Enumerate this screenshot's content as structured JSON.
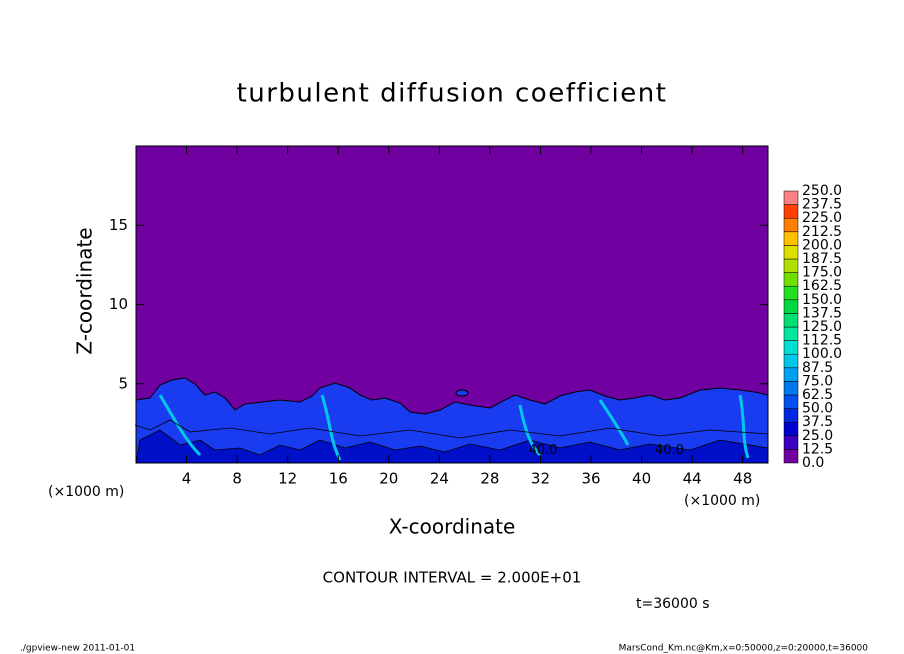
{
  "chart_data": {
    "type": "contour",
    "title": "turbulent diffusion coefficient",
    "x_label": "X-coordinate",
    "y_label": "Z-coordinate",
    "x_unit": "(×1000 m)",
    "y_unit": "(×1000 m)",
    "xlim": [
      0,
      50
    ],
    "ylim": [
      0,
      20
    ],
    "xticks": [
      4,
      8,
      12,
      16,
      20,
      24,
      28,
      32,
      36,
      40,
      44,
      48
    ],
    "yticks": [
      5,
      10,
      15
    ],
    "background_color": "#7000a0",
    "contour_labels": [
      {
        "text": "40.0",
        "x": 32.2,
        "y": 0.8
      },
      {
        "text": "40.0",
        "x": 42.2,
        "y": 0.8
      }
    ],
    "colorbar": {
      "levels": [
        {
          "value": 0,
          "label": "0.0"
        },
        12.5,
        {
          "value": 25,
          "label": "25.0"
        },
        37.5,
        {
          "value": 50,
          "label": "50.0"
        },
        62.5,
        {
          "value": 75,
          "label": "75.0"
        },
        87.5,
        {
          "value": 100,
          "label": "100.0"
        },
        112.5,
        {
          "value": 125,
          "label": "125.0"
        },
        137.5,
        {
          "value": 150,
          "label": "150.0"
        },
        162.5,
        {
          "value": 175,
          "label": "175.0"
        },
        187.5,
        {
          "value": 200,
          "label": "200.0"
        },
        212.5,
        {
          "value": 225,
          "label": "225.0"
        },
        237.5,
        {
          "value": 250,
          "label": "250.0"
        }
      ],
      "colors": [
        "#7000a0",
        "#3c00c0",
        "#0000d0",
        "#0028e0",
        "#0050f0",
        "#0078f0",
        "#00a0f0",
        "#00c8e8",
        "#00e0d0",
        "#00e8a0",
        "#00e070",
        "#00d840",
        "#20e020",
        "#70e000",
        "#b0e000",
        "#e0e000",
        "#ffc000",
        "#ff8000",
        "#ff4000",
        "#ff8080"
      ]
    },
    "contour_interval": "CONTOUR INTERVAL = 2.000E+01",
    "time_label": "t=36000 s",
    "footer_left": "./gpview-new  2011-01-01",
    "footer_right": "MarsCond_Km.nc@Km,x=0:50000,z=0:20000,t=36000"
  }
}
